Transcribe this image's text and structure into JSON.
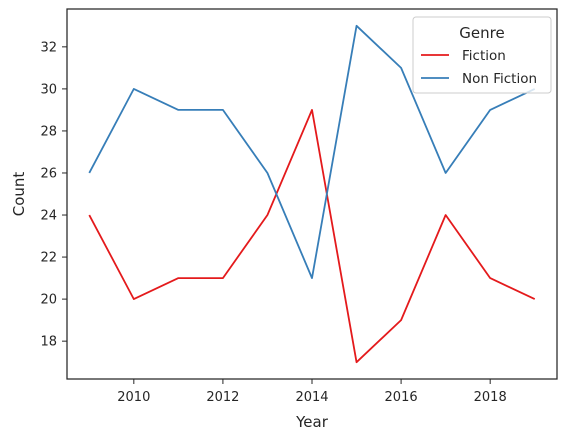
{
  "chart_data": {
    "type": "line",
    "title": "",
    "xlabel": "Year",
    "ylabel": "Count",
    "x": [
      2009,
      2010,
      2011,
      2012,
      2013,
      2014,
      2015,
      2016,
      2017,
      2018,
      2019
    ],
    "xlim": [
      2008.5,
      2019.5
    ],
    "ylim": [
      16.2,
      33.8
    ],
    "xticks": [
      2010,
      2012,
      2014,
      2016,
      2018
    ],
    "yticks": [
      18,
      20,
      22,
      24,
      26,
      28,
      30,
      32
    ],
    "grid": false,
    "legend": {
      "title": "Genre",
      "placement": "top-right"
    },
    "series": [
      {
        "name": "Fiction",
        "color": "#e41a1c",
        "values": [
          24,
          20,
          21,
          21,
          24,
          29,
          17,
          19,
          24,
          21,
          20
        ]
      },
      {
        "name": "Non Fiction",
        "color": "#377eb8",
        "values": [
          26,
          30,
          29,
          29,
          26,
          21,
          33,
          31,
          26,
          29,
          30
        ]
      }
    ]
  }
}
